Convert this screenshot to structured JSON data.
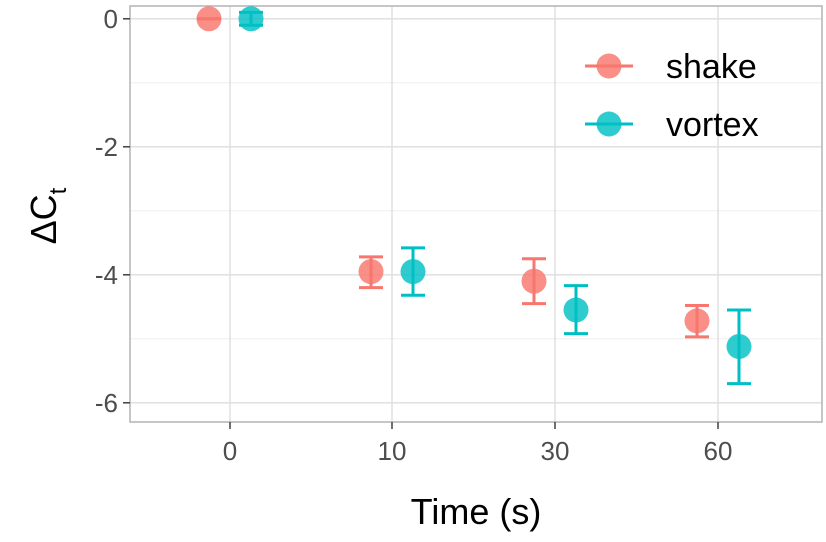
{
  "chart_data": {
    "type": "scatter",
    "subtype": "dodged points with error bars",
    "title": "",
    "xlabel": "Time (s)",
    "ylabel": "ΔC",
    "ylabel_subscript": "t",
    "x_is_categorical": true,
    "categories": [
      "0",
      "10",
      "30",
      "60"
    ],
    "y_ticks": [
      "0",
      "-2",
      "-4",
      "-6"
    ],
    "y_tick_values": [
      0,
      -2,
      -4,
      -6
    ],
    "ylim": [
      -6.3,
      0.2
    ],
    "grid": true,
    "legend_position": "top-right",
    "series": [
      {
        "name": "shake",
        "color": "#F8766D",
        "values": [
          0.0,
          -3.95,
          -4.1,
          -4.72
        ],
        "error_low": [
          0.0,
          -4.2,
          -4.45,
          -4.97
        ],
        "error_high": [
          0.0,
          -3.72,
          -3.75,
          -4.48
        ]
      },
      {
        "name": "vortex",
        "color": "#00BFC4",
        "values": [
          0.0,
          -3.95,
          -4.55,
          -5.12
        ],
        "error_low": [
          -0.1,
          -4.32,
          -4.92,
          -5.7
        ],
        "error_high": [
          0.1,
          -3.58,
          -4.17,
          -4.55
        ]
      }
    ]
  }
}
